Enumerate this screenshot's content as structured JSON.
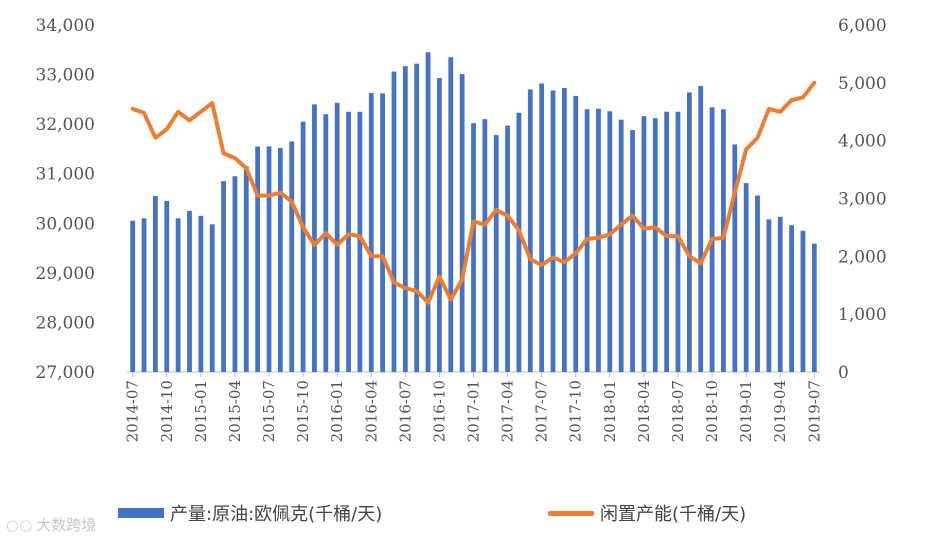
{
  "colors": {
    "production": "#4472C4",
    "spare_capacity": "#ED7D31",
    "axis": "#bfbfbf",
    "text": "#555555"
  },
  "chart_data": {
    "type": "bar+line",
    "title": "",
    "left_axis": {
      "ylim": [
        27000,
        34000
      ],
      "ticks": [
        "27,000",
        "28,000",
        "29,000",
        "30,000",
        "31,000",
        "32,000",
        "33,000",
        "34,000"
      ]
    },
    "right_axis": {
      "ylim": [
        0,
        6000
      ],
      "ticks": [
        "0",
        "1,000",
        "2,000",
        "3,000",
        "4,000",
        "5,000",
        "6,000"
      ]
    },
    "x_tick_labels": [
      "2014-07",
      "2014-10",
      "2015-01",
      "2015-04",
      "2015-07",
      "2015-10",
      "2016-01",
      "2016-04",
      "2016-07",
      "2016-10",
      "2017-01",
      "2017-04",
      "2017-07",
      "2017-10",
      "2018-01",
      "2018-04",
      "2018-07",
      "2018-10",
      "2019-01",
      "2019-04",
      "2019-07"
    ],
    "x": [
      "2014-07",
      "2014-08",
      "2014-09",
      "2014-10",
      "2014-11",
      "2014-12",
      "2015-01",
      "2015-02",
      "2015-03",
      "2015-04",
      "2015-05",
      "2015-06",
      "2015-07",
      "2015-08",
      "2015-09",
      "2015-10",
      "2015-11",
      "2015-12",
      "2016-01",
      "2016-02",
      "2016-03",
      "2016-04",
      "2016-05",
      "2016-06",
      "2016-07",
      "2016-08",
      "2016-09",
      "2016-10",
      "2016-11",
      "2016-12",
      "2017-01",
      "2017-02",
      "2017-03",
      "2017-04",
      "2017-05",
      "2017-06",
      "2017-07",
      "2017-08",
      "2017-09",
      "2017-10",
      "2017-11",
      "2017-12",
      "2018-01",
      "2018-02",
      "2018-03",
      "2018-04",
      "2018-05",
      "2018-06",
      "2018-07",
      "2018-08",
      "2018-09",
      "2018-10",
      "2018-11",
      "2018-12",
      "2019-01",
      "2019-02",
      "2019-03",
      "2019-04",
      "2019-05",
      "2019-06",
      "2019-07"
    ],
    "series": [
      {
        "name": "产量:原油:欧佩克(千桶/天)",
        "type": "bar",
        "axis": "left",
        "values": [
          30050,
          30100,
          30550,
          30450,
          30100,
          30250,
          30150,
          29980,
          30850,
          30950,
          31150,
          31550,
          31550,
          31520,
          31650,
          32050,
          32400,
          32200,
          32430,
          32250,
          32250,
          32630,
          32620,
          33060,
          33170,
          33220,
          33450,
          32930,
          33350,
          33010,
          32020,
          32100,
          31780,
          31970,
          32230,
          32700,
          32820,
          32680,
          32730,
          32570,
          32300,
          32310,
          32260,
          32090,
          31880,
          32160,
          32120,
          32250,
          32250,
          32640,
          32770,
          32340,
          32300,
          31590,
          30810,
          30560,
          30080,
          30130,
          29960,
          29850,
          29590
        ]
      },
      {
        "name": "闲置产能(千桶/天)",
        "type": "line",
        "axis": "right",
        "values": [
          4550,
          4480,
          4050,
          4200,
          4500,
          4350,
          4500,
          4650,
          3780,
          3700,
          3520,
          3050,
          3050,
          3100,
          2950,
          2500,
          2200,
          2400,
          2200,
          2380,
          2350,
          2000,
          2000,
          1550,
          1450,
          1400,
          1200,
          1650,
          1250,
          1600,
          2600,
          2550,
          2800,
          2700,
          2450,
          1950,
          1850,
          1980,
          1900,
          2050,
          2300,
          2320,
          2380,
          2550,
          2700,
          2480,
          2500,
          2350,
          2350,
          2000,
          1880,
          2300,
          2320,
          3100,
          3850,
          4050,
          4550,
          4500,
          4700,
          4750,
          5000
        ]
      }
    ],
    "legend_position": "bottom",
    "grid": false
  },
  "legend": {
    "production_label": "产量:原油:欧佩克(千桶/天)",
    "spare_label": "闲置产能(千桶/天)"
  },
  "watermark": {
    "text": "大数跨境"
  }
}
